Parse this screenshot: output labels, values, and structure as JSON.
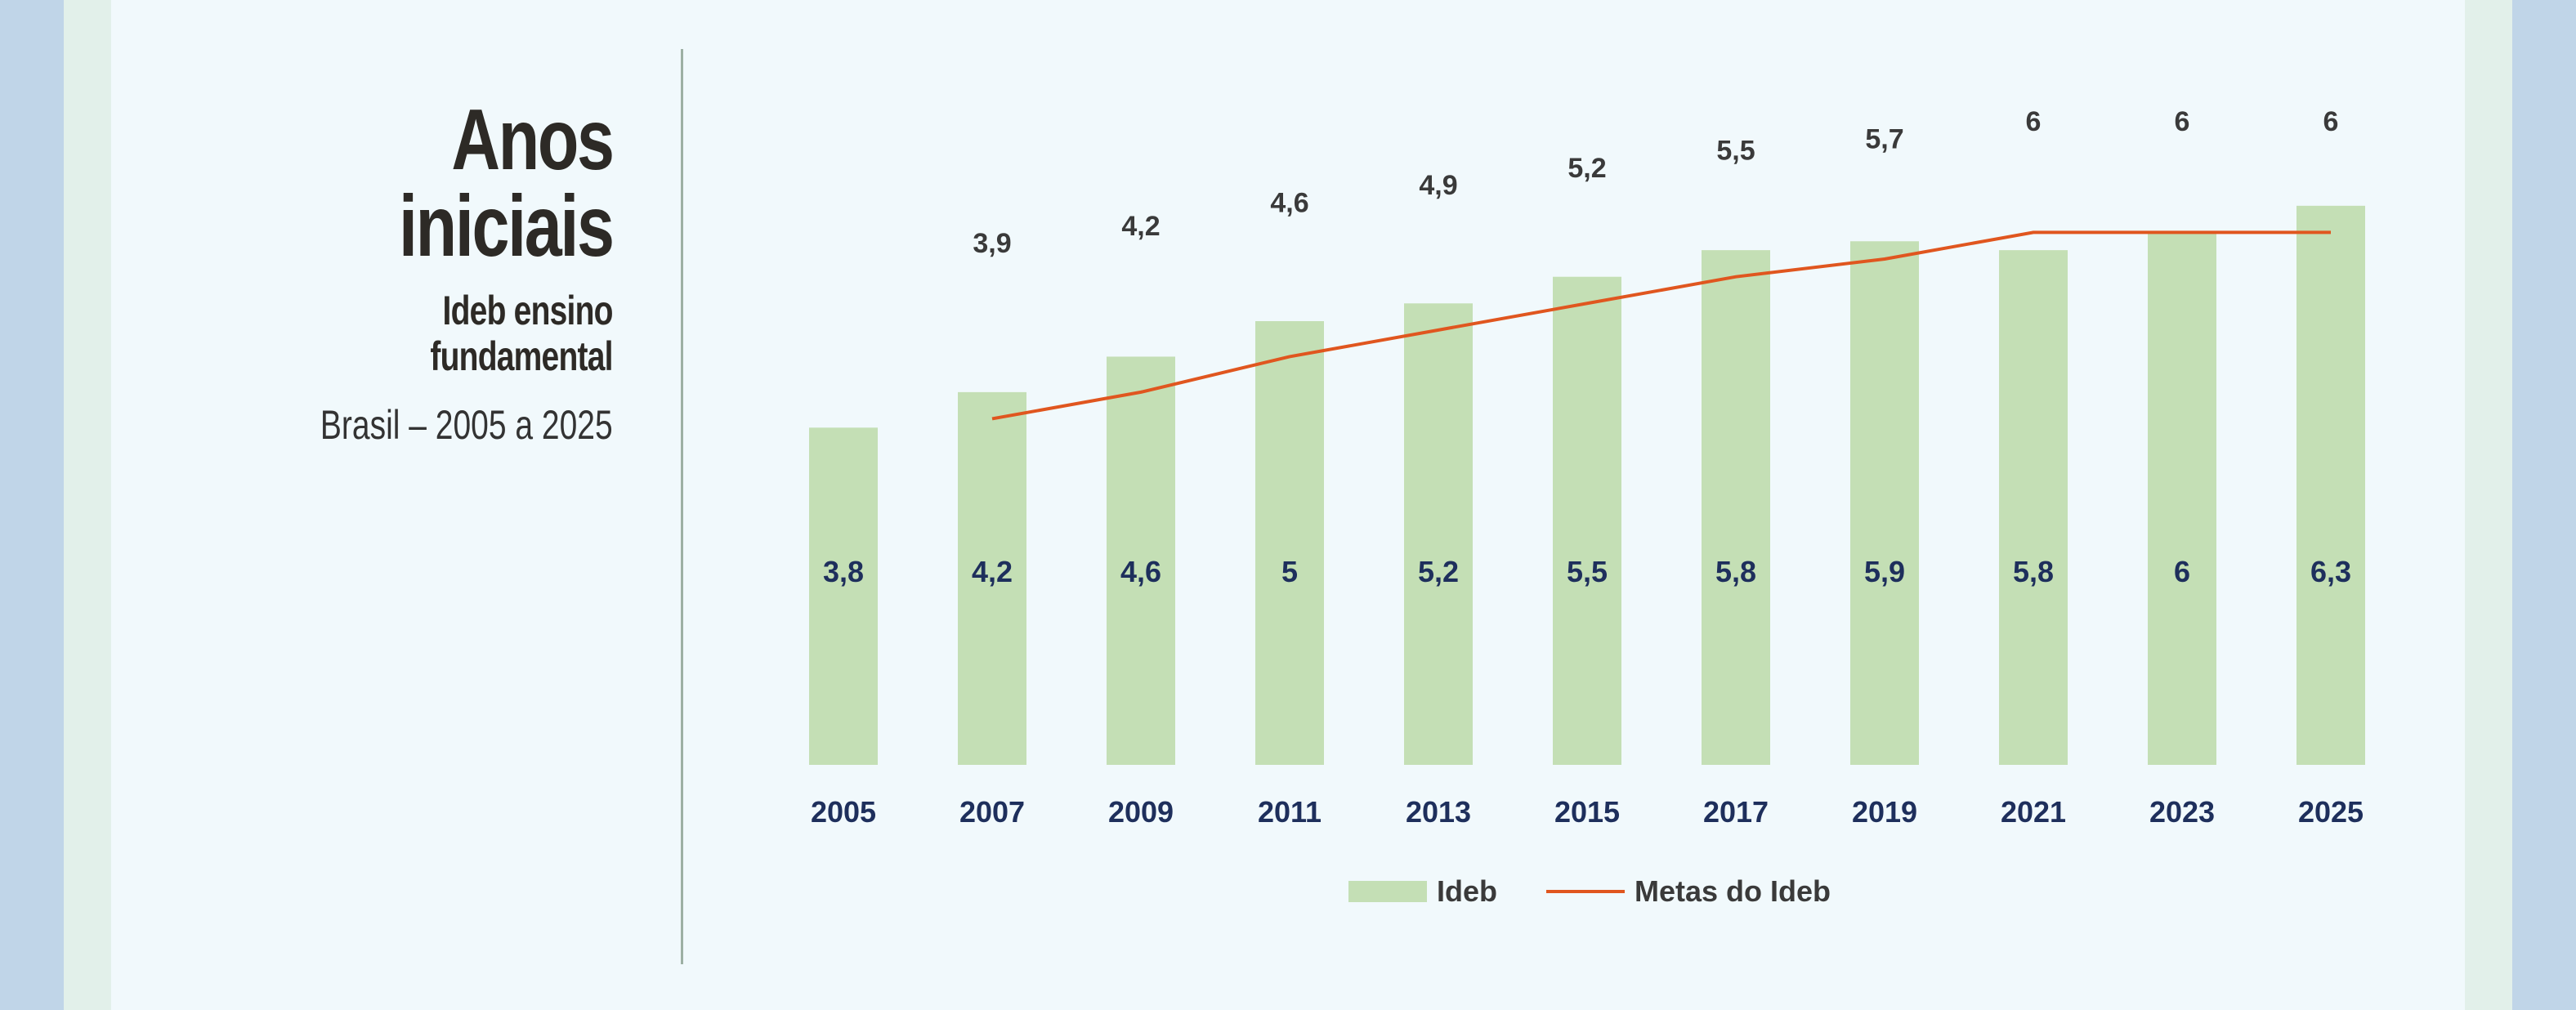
{
  "header": {
    "title_line1": "Anos",
    "title_line2": "iniciais",
    "subtitle_line1": "Ideb ensino",
    "subtitle_line2": "fundamental",
    "range": "Brasil – 2005 a 2025"
  },
  "colors": {
    "bar": "#c4dfb5",
    "goal_line": "#e0561f",
    "value_text": "#1e2f5c",
    "title_text": "#2d2a26"
  },
  "chart_data": {
    "type": "bar",
    "categories": [
      "2005",
      "2007",
      "2009",
      "2011",
      "2013",
      "2015",
      "2017",
      "2019",
      "2021",
      "2023",
      "2025"
    ],
    "series": [
      {
        "name": "Ideb",
        "type": "bar",
        "values": [
          3.8,
          4.2,
          4.6,
          5,
          5.2,
          5.5,
          5.8,
          5.9,
          5.8,
          6,
          6.3
        ],
        "labels": [
          "3,8",
          "4,2",
          "4,6",
          "5",
          "5,2",
          "5,5",
          "5,8",
          "5,9",
          "5,8",
          "6",
          "6,3"
        ]
      },
      {
        "name": "Metas do Ideb",
        "type": "line",
        "values": [
          null,
          3.9,
          4.2,
          4.6,
          4.9,
          5.2,
          5.5,
          5.7,
          6,
          6,
          6
        ],
        "labels": [
          "",
          "3,9",
          "4,2",
          "4,6",
          "4,9",
          "5,2",
          "5,5",
          "5,7",
          "6",
          "6",
          "6"
        ]
      }
    ],
    "legend": [
      "Ideb",
      "Metas do Ideb"
    ],
    "legend_position": "bottom-center",
    "grid": false
  }
}
